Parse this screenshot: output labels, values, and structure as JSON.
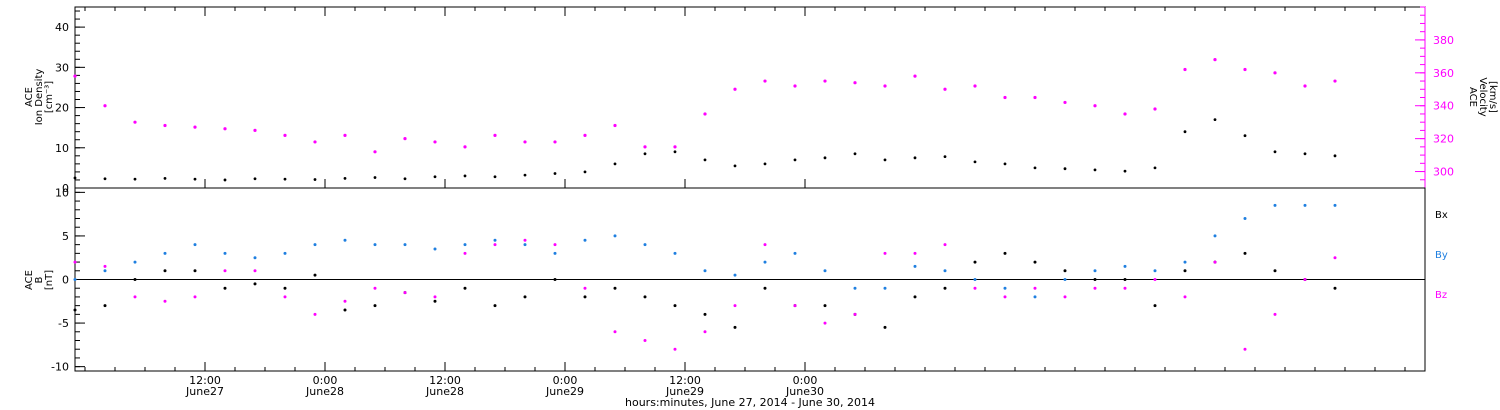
{
  "chart_data": [
    {
      "type": "scatter",
      "panel": "top",
      "ylabel_lines": [
        "ACE",
        "Ion Density",
        "[cm⁻³]"
      ],
      "ylim": [
        0,
        45
      ],
      "yticks": [
        0,
        10,
        20,
        30,
        40
      ],
      "y2label_lines": [
        "ACE",
        "Velocity",
        "[km/s]"
      ],
      "y2lim": [
        290,
        400
      ],
      "y2ticks": [
        300,
        320,
        340,
        360,
        380
      ],
      "series": [
        {
          "name": "ACE Ion Density",
          "axis": "left",
          "color": "#000000",
          "x": [
            0,
            3,
            6,
            9,
            12,
            15,
            18,
            21,
            24,
            27,
            30,
            33,
            36,
            39,
            42,
            45,
            48,
            51,
            54,
            57,
            60,
            63,
            66,
            69,
            72,
            75,
            78,
            81,
            84,
            87,
            90,
            93,
            96,
            99,
            102,
            105,
            108,
            111,
            114,
            117,
            120,
            123,
            126
          ],
          "y": [
            2.5,
            2.3,
            2.2,
            2.4,
            2.2,
            2.0,
            2.3,
            2.2,
            2.1,
            2.4,
            2.6,
            2.3,
            2.8,
            3.0,
            2.8,
            3.2,
            3.6,
            4.0,
            6.0,
            8.5,
            9.0,
            7.0,
            5.5,
            6.0,
            7.0,
            7.5,
            8.5,
            7.0,
            7.5,
            7.8,
            6.5,
            6.0,
            5.0,
            4.8,
            4.5,
            4.2,
            5.0,
            14.0,
            17.0,
            13.0,
            9.0,
            8.5,
            8.0
          ]
        },
        {
          "name": "ACE Velocity",
          "axis": "right",
          "color": "#ff00ff",
          "x": [
            0,
            3,
            6,
            9,
            12,
            15,
            18,
            21,
            24,
            27,
            30,
            33,
            36,
            39,
            42,
            45,
            48,
            51,
            54,
            57,
            60,
            63,
            66,
            69,
            72,
            75,
            78,
            81,
            84,
            87,
            90,
            93,
            96,
            99,
            102,
            105,
            108,
            111,
            114,
            117,
            120,
            123,
            126
          ],
          "y": [
            358,
            340,
            330,
            328,
            327,
            326,
            325,
            322,
            318,
            322,
            312,
            320,
            318,
            315,
            322,
            318,
            318,
            322,
            328,
            315,
            315,
            335,
            350,
            355,
            352,
            355,
            354,
            352,
            358,
            350,
            352,
            345,
            345,
            342,
            340,
            335,
            338,
            362,
            368,
            362,
            360,
            352,
            355
          ]
        }
      ]
    },
    {
      "type": "scatter",
      "panel": "bottom",
      "ylabel_lines": [
        "ACE",
        "B",
        "[nT]"
      ],
      "ylim": [
        -10.5,
        10.5
      ],
      "yticks": [
        -10,
        -5,
        0,
        5,
        10
      ],
      "zero_line": true,
      "legend": [
        "Bx",
        "By",
        "Bz"
      ],
      "series": [
        {
          "name": "Bx",
          "color": "#000000",
          "x": [
            0,
            3,
            6,
            9,
            12,
            15,
            18,
            21,
            24,
            27,
            30,
            33,
            36,
            39,
            42,
            45,
            48,
            51,
            54,
            57,
            60,
            63,
            66,
            69,
            72,
            75,
            78,
            81,
            84,
            87,
            90,
            93,
            96,
            99,
            102,
            105,
            108,
            111,
            114,
            117,
            120,
            123,
            126
          ],
          "y": [
            -3.5,
            -3.0,
            0.0,
            1.0,
            1.0,
            -1.0,
            -0.5,
            -1.0,
            0.5,
            -3.5,
            -3.0,
            -1.5,
            -2.5,
            -1.0,
            -3.0,
            -2.0,
            0.0,
            -2.0,
            -1.0,
            -2.0,
            -3.0,
            -4.0,
            -5.5,
            -1.0,
            -3.0,
            -3.0,
            -4.0,
            -5.5,
            -2.0,
            -1.0,
            2.0,
            3.0,
            2.0,
            1.0,
            0.0,
            0.0,
            -3.0,
            1.0,
            2.0,
            3.0,
            1.0,
            0.0,
            -1.0
          ]
        },
        {
          "name": "By",
          "color": "#1f7fe0",
          "x": [
            0,
            3,
            6,
            9,
            12,
            15,
            18,
            21,
            24,
            27,
            30,
            33,
            36,
            39,
            42,
            45,
            48,
            51,
            54,
            57,
            60,
            63,
            66,
            69,
            72,
            75,
            78,
            81,
            84,
            87,
            90,
            93,
            96,
            99,
            102,
            105,
            108,
            111,
            114,
            117,
            120,
            123,
            126
          ],
          "y": [
            0.0,
            1.0,
            2.0,
            3.0,
            4.0,
            3.0,
            2.5,
            3.0,
            4.0,
            4.5,
            4.0,
            4.0,
            3.5,
            4.0,
            4.5,
            4.0,
            3.0,
            4.5,
            5.0,
            4.0,
            3.0,
            1.0,
            0.5,
            2.0,
            3.0,
            1.0,
            -1.0,
            -1.0,
            1.5,
            1.0,
            0.0,
            -1.0,
            -2.0,
            0.0,
            1.0,
            1.5,
            1.0,
            2.0,
            5.0,
            7.0,
            8.5,
            8.5,
            8.5
          ]
        },
        {
          "name": "Bz",
          "color": "#ff00ff",
          "x": [
            0,
            3,
            6,
            9,
            12,
            15,
            18,
            21,
            24,
            27,
            30,
            33,
            36,
            39,
            42,
            45,
            48,
            51,
            54,
            57,
            60,
            63,
            66,
            69,
            72,
            75,
            78,
            81,
            84,
            87,
            90,
            93,
            96,
            99,
            102,
            105,
            108,
            111,
            114,
            117,
            120,
            123,
            126
          ],
          "y": [
            2.0,
            1.5,
            -2.0,
            -2.5,
            -2.0,
            1.0,
            1.0,
            -2.0,
            -4.0,
            -2.5,
            -1.0,
            -1.5,
            -2.0,
            3.0,
            4.0,
            4.5,
            4.0,
            -1.0,
            -6.0,
            -7.0,
            -8.0,
            -6.0,
            -3.0,
            4.0,
            -3.0,
            -5.0,
            -4.0,
            3.0,
            3.0,
            4.0,
            -1.0,
            -2.0,
            -1.0,
            -2.0,
            -1.0,
            -1.0,
            0.0,
            -2.0,
            2.0,
            -8.0,
            -4.0,
            0.0,
            2.5
          ]
        }
      ]
    }
  ],
  "x_axis": {
    "xlim": [
      0,
      135
    ],
    "ticks": [
      {
        "x": 13,
        "time": "12:00",
        "date": "June27"
      },
      {
        "x": 25,
        "time": "0:00",
        "date": "June28"
      },
      {
        "x": 37,
        "time": "12:00",
        "date": "June28"
      },
      {
        "x": 49,
        "time": "0:00",
        "date": "June29"
      },
      {
        "x": 61,
        "time": "12:00",
        "date": "June29"
      },
      {
        "x": 73,
        "time": "0:00",
        "date": "June30"
      }
    ],
    "title": "hours:minutes, June 27, 2014 - June 30, 2014"
  }
}
